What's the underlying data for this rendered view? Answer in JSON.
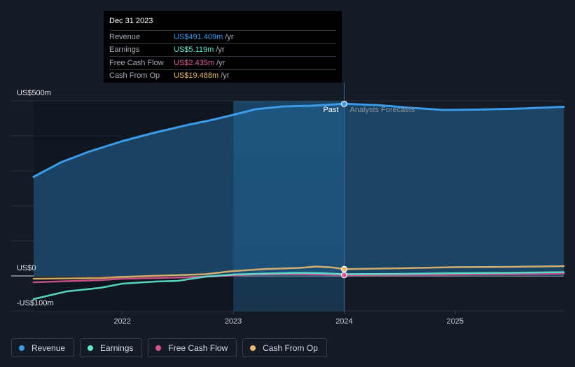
{
  "tooltip": {
    "date": "Dec 31 2023",
    "rows": [
      {
        "label": "Revenue",
        "value": "US$491.409m",
        "unit": "/yr",
        "color": "#3b9be8"
      },
      {
        "label": "Earnings",
        "value": "US$5.119m",
        "unit": "/yr",
        "color": "#5ee8cf"
      },
      {
        "label": "Free Cash Flow",
        "value": "US$2.435m",
        "unit": "/yr",
        "color": "#e0609a"
      },
      {
        "label": "Cash From Op",
        "value": "US$19.488m",
        "unit": "/yr",
        "color": "#e8b86d"
      }
    ]
  },
  "legend": [
    {
      "label": "Revenue",
      "color": "#3b9be8"
    },
    {
      "label": "Earnings",
      "color": "#5ee8cf"
    },
    {
      "label": "Free Cash Flow",
      "color": "#d6558f"
    },
    {
      "label": "Cash From Op",
      "color": "#e8b86d"
    }
  ],
  "chart_data": {
    "type": "line",
    "y_tick_labels": [
      "US$500m",
      "US$0",
      "-US$100m"
    ],
    "x_tick_labels": [
      "2022",
      "2023",
      "2024",
      "2025"
    ],
    "divider_labels": {
      "past": "Past",
      "forecast": "Analysts Forecasts"
    },
    "ylim": [
      -100,
      500
    ],
    "xlim": [
      2021.2,
      2025.98
    ],
    "divider_x": 2024.0,
    "highlight_start_x": 2023.0,
    "series": [
      {
        "name": "Revenue",
        "color": "#3b9be8",
        "fill": true,
        "points": [
          [
            2021.2,
            283
          ],
          [
            2021.45,
            325
          ],
          [
            2021.7,
            355
          ],
          [
            2022.0,
            385
          ],
          [
            2022.3,
            410
          ],
          [
            2022.6,
            432
          ],
          [
            2022.8,
            445
          ],
          [
            2023.0,
            460
          ],
          [
            2023.2,
            476
          ],
          [
            2023.45,
            484
          ],
          [
            2023.7,
            486
          ],
          [
            2024.0,
            491.4
          ],
          [
            2024.3,
            488
          ],
          [
            2024.6,
            480
          ],
          [
            2024.9,
            474
          ],
          [
            2025.2,
            475
          ],
          [
            2025.6,
            478
          ],
          [
            2025.98,
            483
          ]
        ]
      },
      {
        "name": "Earnings",
        "color": "#5ee8cf",
        "fill": false,
        "points": [
          [
            2021.2,
            -66
          ],
          [
            2021.5,
            -44
          ],
          [
            2021.8,
            -34
          ],
          [
            2022.0,
            -22
          ],
          [
            2022.3,
            -16
          ],
          [
            2022.5,
            -14
          ],
          [
            2022.75,
            -2
          ],
          [
            2023.0,
            4
          ],
          [
            2023.3,
            7
          ],
          [
            2023.6,
            9
          ],
          [
            2023.8,
            8
          ],
          [
            2024.0,
            5.1
          ],
          [
            2024.5,
            6
          ],
          [
            2025.0,
            8
          ],
          [
            2025.5,
            9
          ],
          [
            2025.98,
            11
          ]
        ]
      },
      {
        "name": "Free Cash Flow",
        "color": "#d6558f",
        "fill": false,
        "points": [
          [
            2021.2,
            -18
          ],
          [
            2021.5,
            -15
          ],
          [
            2021.8,
            -12
          ],
          [
            2022.0,
            -8
          ],
          [
            2022.3,
            -6
          ],
          [
            2022.6,
            -4
          ],
          [
            2022.9,
            0
          ],
          [
            2023.2,
            4
          ],
          [
            2023.5,
            5
          ],
          [
            2023.8,
            4
          ],
          [
            2024.0,
            2.4
          ],
          [
            2024.5,
            3
          ],
          [
            2025.0,
            4
          ],
          [
            2025.5,
            5
          ],
          [
            2025.98,
            7
          ]
        ]
      },
      {
        "name": "Cash From Op",
        "color": "#e8b86d",
        "fill": false,
        "points": [
          [
            2021.2,
            -8
          ],
          [
            2021.5,
            -7
          ],
          [
            2021.8,
            -6
          ],
          [
            2022.0,
            -3
          ],
          [
            2022.25,
            0
          ],
          [
            2022.45,
            2
          ],
          [
            2022.75,
            5
          ],
          [
            2023.0,
            14
          ],
          [
            2023.3,
            20
          ],
          [
            2023.6,
            23
          ],
          [
            2023.75,
            27
          ],
          [
            2023.9,
            24
          ],
          [
            2024.0,
            19.5
          ],
          [
            2024.5,
            22
          ],
          [
            2025.0,
            25
          ],
          [
            2025.5,
            26
          ],
          [
            2025.98,
            28
          ]
        ]
      }
    ],
    "markers": [
      {
        "series": "Revenue",
        "x": 2024.0,
        "y": 491.4
      },
      {
        "series": "Cash From Op",
        "x": 2024.0,
        "y": 19.5
      },
      {
        "series": "Free Cash Flow",
        "x": 2024.0,
        "y": 2.4
      }
    ],
    "grid": true,
    "legend_position": "bottom-left"
  }
}
